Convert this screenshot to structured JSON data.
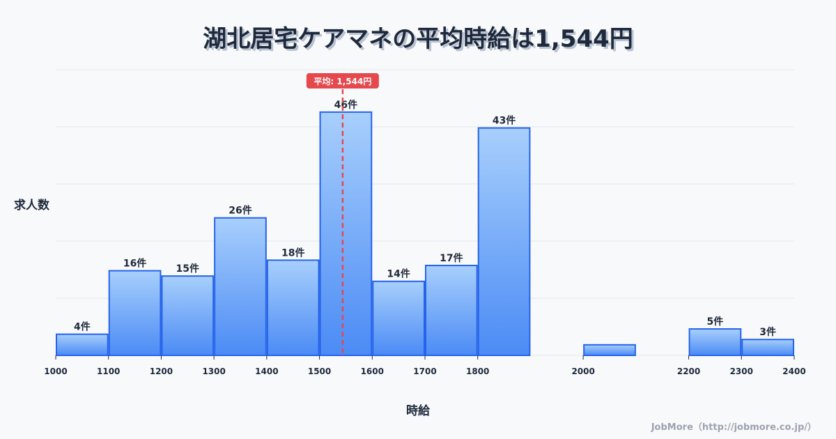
{
  "header": {
    "title": "湖北居宅ケアマネの平均時給は1,544円"
  },
  "axes": {
    "ylabel": "求人数",
    "xlabel": "時給"
  },
  "footer": {
    "credit": "JobMore（http://jobmore.co.jp/）"
  },
  "colors": {
    "bar_top": "#a8cffc",
    "bar_bottom": "#4b8bf5",
    "bar_border": "#2563eb",
    "mean_line": "#e5484d",
    "grid": "#e2e6ee",
    "text": "#1e293b"
  },
  "chart_data": {
    "type": "bar",
    "title": "湖北居宅ケアマネの平均時給は1,544円",
    "xlabel": "時給",
    "ylabel": "求人数",
    "bins": [
      {
        "from": 1000,
        "to": 1100,
        "value": 4,
        "label": "4件"
      },
      {
        "from": 1100,
        "to": 1200,
        "value": 16,
        "label": "16件"
      },
      {
        "from": 1200,
        "to": 1300,
        "value": 15,
        "label": "15件"
      },
      {
        "from": 1300,
        "to": 1400,
        "value": 26,
        "label": "26件"
      },
      {
        "from": 1400,
        "to": 1500,
        "value": 18,
        "label": "18件"
      },
      {
        "from": 1500,
        "to": 1600,
        "value": 46,
        "label": "46件"
      },
      {
        "from": 1600,
        "to": 1700,
        "value": 14,
        "label": "14件"
      },
      {
        "from": 1700,
        "to": 1800,
        "value": 17,
        "label": "17件"
      },
      {
        "from": 1800,
        "to": 1900,
        "value": 43,
        "label": "43件"
      },
      {
        "from": 2000,
        "to": 2100,
        "value": 2,
        "label": ""
      },
      {
        "from": 2200,
        "to": 2300,
        "value": 5,
        "label": "5件"
      },
      {
        "from": 2300,
        "to": 2400,
        "value": 3,
        "label": "3件"
      }
    ],
    "x_ticks": [
      1000,
      1100,
      1200,
      1300,
      1400,
      1500,
      1600,
      1700,
      1800,
      2000,
      2200,
      2300,
      2400
    ],
    "xlim": [
      1000,
      2400
    ],
    "ylim": [
      0,
      54
    ],
    "grid": true,
    "mean": {
      "value": 1544,
      "label": "平均: 1,544円"
    }
  }
}
